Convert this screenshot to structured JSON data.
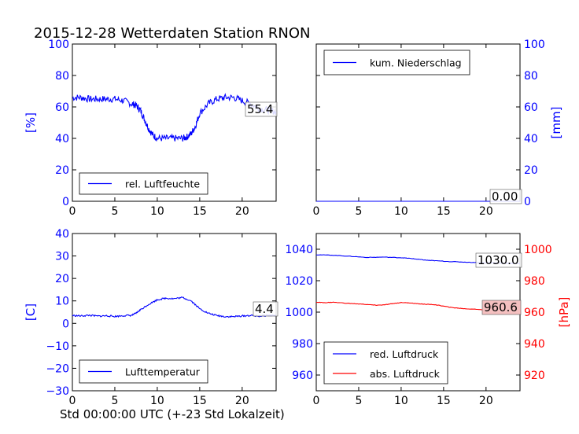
{
  "title": "2015-12-28 Wetterdaten Station RNON",
  "xlabel": "Std 00:00:00 UTC (+-23 Std Lokalzeit)",
  "colors": {
    "blue": "#0000ff",
    "red": "#ff0000",
    "black": "#000000",
    "badge_bg": "#f4c0c0"
  },
  "chart_data": [
    {
      "id": "humidity",
      "type": "line",
      "xlim": [
        0,
        24
      ],
      "ylim": [
        0,
        100
      ],
      "xticks": [
        "0",
        "5",
        "10",
        "15",
        "20"
      ],
      "yticks": [
        "0",
        "20",
        "40",
        "60",
        "80",
        "100"
      ],
      "ylabel": "[%]",
      "legend": [
        "rel. Luftfeuchte"
      ],
      "legend_position": "lower-left",
      "current_value": "55.4",
      "series": [
        {
          "name": "rel. Luftfeuchte",
          "color": "#0000ff",
          "x": [
            0,
            1,
            2,
            3,
            4,
            5,
            6,
            7,
            7.5,
            8,
            8.5,
            9,
            9.5,
            10,
            11,
            12,
            13,
            13.5,
            14,
            14.5,
            15,
            16,
            17,
            18,
            19,
            20,
            21,
            22,
            23,
            24
          ],
          "y": [
            66,
            66,
            65,
            65,
            65,
            65,
            64,
            62,
            61,
            58,
            52,
            46,
            42,
            40,
            40,
            40,
            40,
            41,
            43,
            48,
            56,
            62,
            65,
            66,
            66,
            64,
            62,
            59,
            58,
            57
          ]
        }
      ]
    },
    {
      "id": "precipitation",
      "type": "line",
      "xlim": [
        0,
        24
      ],
      "ylim": [
        0,
        100
      ],
      "xticks": [
        "0",
        "5",
        "10",
        "15",
        "20"
      ],
      "yticks": [
        "0",
        "20",
        "40",
        "60",
        "80",
        "100"
      ],
      "ylabel": "[mm]",
      "legend": [
        "kum. Niederschlag"
      ],
      "legend_position": "upper-left",
      "current_value": "0.00",
      "series": [
        {
          "name": "kum. Niederschlag",
          "color": "#0000ff",
          "x": [
            0,
            24
          ],
          "y": [
            0,
            0
          ]
        }
      ]
    },
    {
      "id": "temperature",
      "type": "line",
      "xlim": [
        0,
        24
      ],
      "ylim": [
        -30,
        40
      ],
      "xticks": [
        "0",
        "5",
        "10",
        "15",
        "20"
      ],
      "yticks": [
        "−30",
        "−20",
        "−10",
        "0",
        "10",
        "20",
        "30",
        "40"
      ],
      "ylabel": "[C]",
      "legend": [
        "Lufttemperatur"
      ],
      "legend_position": "lower-left",
      "current_value": "4.4",
      "series": [
        {
          "name": "Lufttemperatur",
          "color": "#0000ff",
          "x": [
            0,
            1,
            2,
            3,
            4,
            5,
            6,
            7,
            7.5,
            8,
            9,
            10,
            11,
            12,
            13,
            14,
            15,
            16,
            17,
            18,
            19,
            20,
            21,
            22,
            23,
            24
          ],
          "y": [
            3.5,
            3.3,
            3.6,
            3.2,
            3.4,
            3.1,
            3.4,
            3.6,
            4.5,
            6,
            8.5,
            10.5,
            11.2,
            11,
            11.5,
            10,
            6.5,
            4.5,
            3.5,
            3,
            3,
            3.3,
            3.5,
            3.2,
            3.6,
            3.5
          ]
        }
      ]
    },
    {
      "id": "pressure",
      "type": "line",
      "xlim": [
        0,
        24
      ],
      "ylim": [
        950,
        1050
      ],
      "ylim_right": [
        910,
        1010
      ],
      "xticks": [
        "0",
        "5",
        "10",
        "15",
        "20"
      ],
      "yticks": [
        "960",
        "980",
        "1000",
        "1020",
        "1040"
      ],
      "yticks_right": [
        "920",
        "940",
        "960",
        "980",
        "1000"
      ],
      "ylabel_right": "[hPa]",
      "legend": [
        "red. Luftdruck",
        "abs. Luftdruck"
      ],
      "legend_position": "lower-left",
      "current_values": [
        "1030.0",
        "960.6"
      ],
      "series": [
        {
          "name": "red. Luftdruck",
          "color": "#0000ff",
          "x": [
            0,
            2,
            4,
            6,
            8,
            10,
            11,
            12,
            13,
            14,
            16,
            18,
            20,
            22,
            24
          ],
          "y": [
            1036.5,
            1036.2,
            1035.5,
            1034.8,
            1035,
            1034.6,
            1034.2,
            1033.6,
            1033,
            1032.7,
            1032.1,
            1031.7,
            1031.4,
            1031.2,
            1030.8
          ]
        },
        {
          "name": "abs. Luftdruck",
          "color": "#ff0000",
          "x": [
            0,
            1,
            2,
            4,
            6,
            7,
            8,
            9,
            10,
            11,
            12,
            13,
            14,
            15,
            16,
            17,
            18,
            20,
            22,
            24
          ],
          "y": [
            1006.3,
            1006,
            1006.3,
            1005.5,
            1004.9,
            1004.4,
            1004.6,
            1005.4,
            1006.1,
            1005.9,
            1005.3,
            1005,
            1004.7,
            1003.8,
            1002.9,
            1002.4,
            1002,
            1001.5,
            1001.1,
            1000.5
          ]
        }
      ]
    }
  ]
}
